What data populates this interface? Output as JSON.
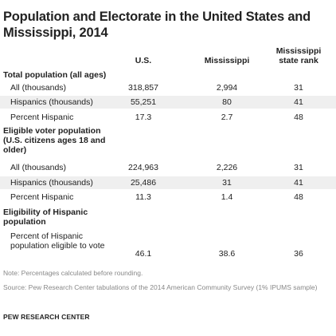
{
  "title": "Population and Electorate in the United States and Mississippi, 2014",
  "columns": {
    "us": "U.S.",
    "mississippi": "Mississippi",
    "rank": "Mississippi state rank"
  },
  "sections": {
    "total": {
      "heading": "Total population (all ages)",
      "rows": [
        {
          "label": "All (thousands)",
          "us": "318,857",
          "ms": "2,994",
          "rank": "31"
        },
        {
          "label": "Hispanics (thousands)",
          "us": "55,251",
          "ms": "80",
          "rank": "41"
        },
        {
          "label": "Percent Hispanic",
          "us": "17.3",
          "ms": "2.7",
          "rank": "48"
        }
      ]
    },
    "eligible": {
      "heading": "Eligible voter population (U.S. citizens ages 18 and older)",
      "rows": [
        {
          "label": "All (thousands)",
          "us": "224,963",
          "ms": "2,226",
          "rank": "31"
        },
        {
          "label": "Hispanics (thousands)",
          "us": "25,486",
          "ms": "31",
          "rank": "41"
        },
        {
          "label": "Percent Hispanic",
          "us": "11.3",
          "ms": "1.4",
          "rank": "48"
        }
      ]
    },
    "eligibility": {
      "heading": "Eligibility of Hispanic population",
      "rows": [
        {
          "label": "Percent of Hispanic population eligible to vote",
          "us": "46.1",
          "ms": "38.6",
          "rank": "36"
        }
      ]
    }
  },
  "note": "Note: Percentages calculated before rounding.",
  "source": "Source: Pew Research Center tabulations of the 2014 American Community Survey (1% IPUMS sample)",
  "footer": "PEW RESEARCH CENTER"
}
